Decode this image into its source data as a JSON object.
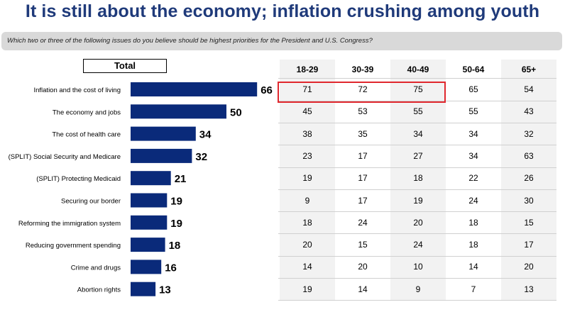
{
  "title": "It is still about the economy; inflation crushing among youth",
  "question": "Which two or three of the following issues do you believe should be highest priorities for the President and U.S. Congress?",
  "total_label": "Total",
  "colors": {
    "bar": "#0a2a7a",
    "title": "#1f3a7a",
    "highlight": "#e0282e"
  },
  "chart_data": {
    "type": "bar",
    "orientation": "horizontal",
    "categories": [
      "Inflation and the cost of living",
      "The economy and jobs",
      "The cost of health care",
      "(SPLIT) Social Security and Medicare",
      "(SPLIT) Protecting Medicaid",
      "Securing our border",
      "Reforming the immigration system",
      "Reducing government spending",
      "Crime and drugs",
      "Abortion rights"
    ],
    "values": [
      66,
      50,
      34,
      32,
      21,
      19,
      19,
      18,
      16,
      13
    ],
    "xlim": [
      0,
      80
    ]
  },
  "table": {
    "columns": [
      "18-29",
      "30-39",
      "40-49",
      "50-64",
      "65+"
    ],
    "rows": [
      [
        "71",
        "72",
        "75",
        "65",
        "54"
      ],
      [
        "45",
        "53",
        "55",
        "55",
        "43"
      ],
      [
        "38",
        "35",
        "34",
        "34",
        "32"
      ],
      [
        "23",
        "17",
        "27",
        "34",
        "63"
      ],
      [
        "19",
        "17",
        "18",
        "22",
        "26"
      ],
      [
        "9",
        "17",
        "19",
        "24",
        "30"
      ],
      [
        "18",
        "24",
        "20",
        "18",
        "15"
      ],
      [
        "20",
        "15",
        "24",
        "18",
        "17"
      ],
      [
        "14",
        "20",
        "10",
        "14",
        "20"
      ],
      [
        "19",
        "14",
        "9",
        "7",
        "13"
      ]
    ]
  }
}
